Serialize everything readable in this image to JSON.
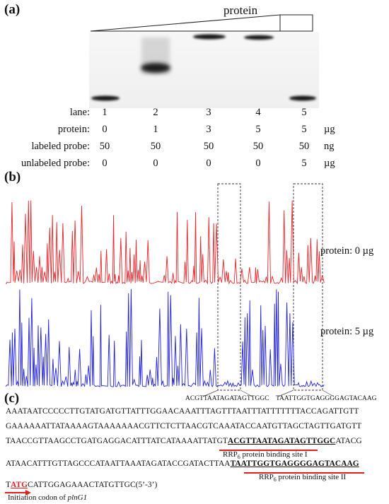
{
  "panel_a": {
    "label": "(a)",
    "gradient_label": "protein",
    "rows": [
      {
        "label": "lane:",
        "values": [
          "1",
          "2",
          "3",
          "4",
          "5"
        ],
        "unit": ""
      },
      {
        "label": "protein:",
        "values": [
          "0",
          "1",
          "3",
          "5",
          "5"
        ],
        "unit": "µg"
      },
      {
        "label": "labeled probe:",
        "values": [
          "50",
          "50",
          "50",
          "50",
          "50"
        ],
        "unit": "ng"
      },
      {
        "label": "unlabeled probe:",
        "values": [
          "0",
          "0",
          "0",
          "0",
          "5"
        ],
        "unit": "µg"
      }
    ],
    "gel": {
      "lanes": [
        {
          "band": "free probe"
        },
        {
          "band": "shifted (smear)"
        },
        {
          "band": "shifted (top)"
        },
        {
          "band": "shifted (top)"
        },
        {
          "band": "free probe"
        }
      ]
    }
  },
  "panel_b": {
    "label": "(b)",
    "trace_red_label": "protein: 0 µg",
    "trace_blue_label": "protein: 5 µg",
    "colors": {
      "red": "#e8262b",
      "blue": "#2424d9"
    },
    "region1_seq": "ACGTTAATAGATAGTTGGC",
    "region2_seq": "TAATTGGTGAGGGGAGTACAAG"
  },
  "panel_c": {
    "label": "(c)",
    "lines": [
      {
        "text": "AAATAATCCCCCTTGTATGATGTTATTTGGAACAAATTTAGTTTAATTTATTTTTTTACCAGATTGTT"
      },
      {
        "text": "GAAAAAATTATAAAAGTAAAAAAACGTTCTCTTAACGTCAAATACCAATGTTAGCTAGTTGATGTT"
      },
      {
        "pre": "TAACCGTTAAGCCTGATGAGGACATTTATCATAAAATTATGT",
        "bold": "ACGTTAATAGATAGTTGGC",
        "post": "ATACG"
      },
      {
        "pre": "ATAACATTTGTTAGCCCATAATTAAATAGATACCGATACTTAA",
        "bold": "TAATTGGTGAGGGGAGTACAAG",
        "post": ""
      },
      {
        "pre": "T",
        "bold": "ATG",
        "post": "CATTGGAGAAACTATGTTGC(5’-3’)"
      }
    ],
    "site1_label": "RRP",
    "site1_sub": "6",
    "site1_suffix": " protein binding site I",
    "site2_label": "RRP",
    "site2_sub": "6",
    "site2_suffix": " protein binding site II",
    "codon_label": "Initiation codon of ",
    "codon_gene": "plnG1",
    "accent": "#e0201f"
  }
}
